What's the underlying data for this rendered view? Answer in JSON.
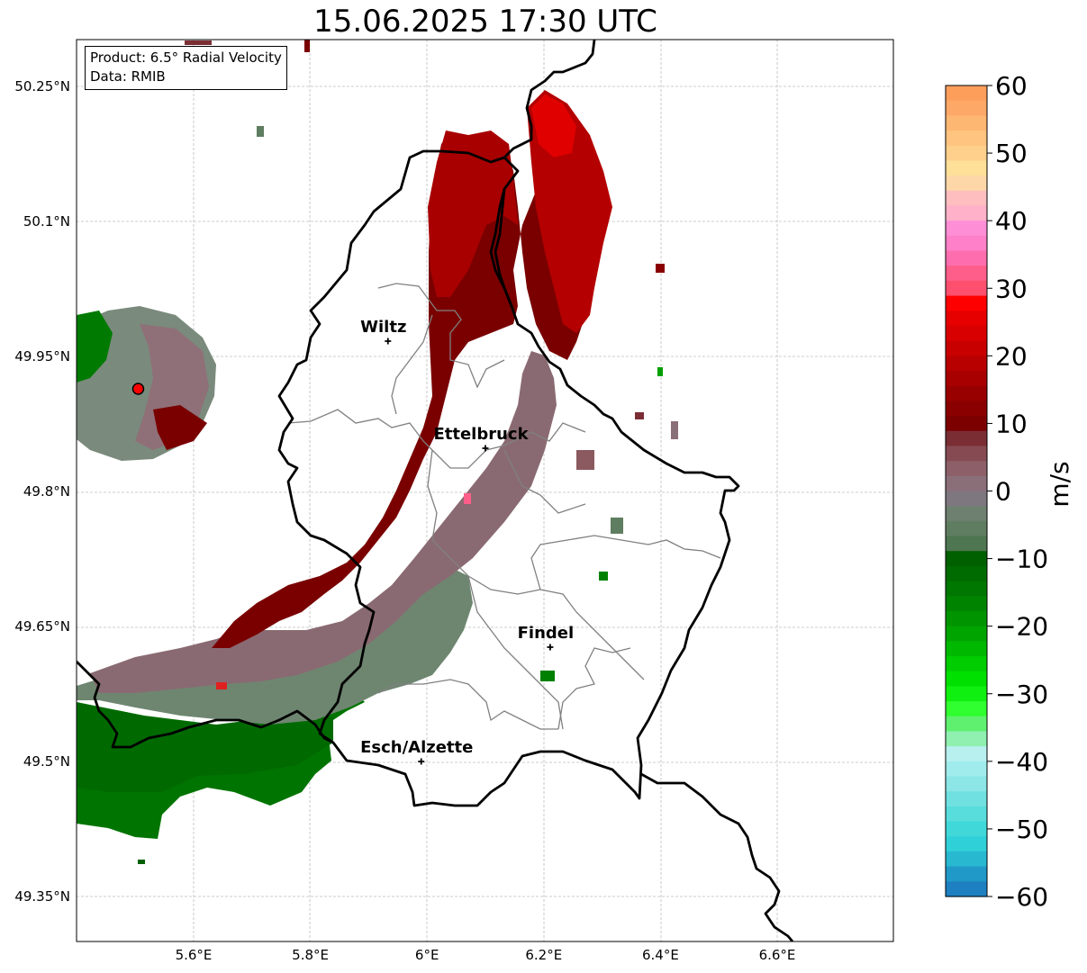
{
  "title": "15.06.2025 17:30 UTC",
  "info": {
    "product": "Product: 6.5° Radial Velocity",
    "source": "Data: RMIB"
  },
  "colorbar": {
    "label": "m/s",
    "ticks": [
      "60",
      "50",
      "40",
      "30",
      "20",
      "10",
      "0",
      "−10",
      "−20",
      "−30",
      "−40",
      "−50",
      "−60"
    ],
    "colors_top_to_bottom": [
      "#fe9e5b",
      "#fea868",
      "#feb673",
      "#fec480",
      "#fed08c",
      "#fee098",
      "#fed7a8",
      "#febec0",
      "#feb1c8",
      "#fe8ed6",
      "#fe80c8",
      "#fe6eae",
      "#fe5e8a",
      "#fe4f6e",
      "#fe0000",
      "#e60000",
      "#d80000",
      "#c80000",
      "#b80000",
      "#a80000",
      "#980000",
      "#8a0000",
      "#7c0000",
      "#7a2e34",
      "#864a52",
      "#8d5f68",
      "#8a6e78",
      "#7f7780",
      "#6e8070",
      "#5f7d60",
      "#4e7650",
      "#006000",
      "#006b00",
      "#007700",
      "#008400",
      "#009400",
      "#00a400",
      "#00b800",
      "#00cc00",
      "#00e000",
      "#10f010",
      "#30ff30",
      "#60f070",
      "#90f0b0",
      "#b8f0f0",
      "#a0ecec",
      "#8ce6e6",
      "#70e0e0",
      "#58dcdc",
      "#40d8d8",
      "#30d0d8",
      "#28b8d0",
      "#2098c8",
      "#1e80c0"
    ]
  },
  "map": {
    "lat_ticks": [
      "50.25°N",
      "50.1°N",
      "49.95°N",
      "49.8°N",
      "49.65°N",
      "49.5°N",
      "49.35°N"
    ],
    "lon_ticks": [
      "5.6°E",
      "5.8°E",
      "6°E",
      "6.2°E",
      "6.4°E",
      "6.6°E"
    ],
    "cities": [
      {
        "name": "Wiltz",
        "lon": 5.933,
        "lat": 49.967
      },
      {
        "name": "Ettelbruck",
        "lon": 6.1,
        "lat": 49.848
      },
      {
        "name": "Findel",
        "lon": 6.211,
        "lat": 49.627
      },
      {
        "name": "Esch/Alzette",
        "lon": 5.99,
        "lat": 49.5
      }
    ],
    "radar": {
      "lon": 5.505,
      "lat": 49.914
    },
    "colors": {
      "echo_dark_red": "#7a0000",
      "echo_red": "#b00000",
      "echo_bright_red": "#e00000",
      "echo_mauve": "#8a6a72",
      "echo_grey_green": "#6f8872",
      "echo_green": "#007000",
      "border": "#000000",
      "canton_lines": "#808080",
      "radar_marker": "#ff0000"
    }
  }
}
